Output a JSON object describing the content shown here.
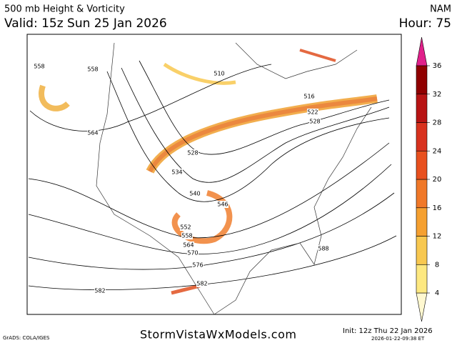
{
  "header": {
    "title": "500 mb Height & Vorticity",
    "valid": "Valid: 15z Sun 25 Jan 2026",
    "model": "NAM",
    "hour": "Hour: 75"
  },
  "colorbar": {
    "ticks": [
      4,
      8,
      12,
      16,
      20,
      24,
      28,
      32,
      36
    ]
  },
  "contour_labels": [
    558,
    558,
    510,
    516,
    522,
    528,
    564,
    528,
    534,
    540,
    546,
    552,
    558,
    564,
    570,
    576,
    588,
    582,
    582
  ],
  "footer": {
    "credit": "GrADS: COLA/IGES",
    "site": "StormVistaWxModels.com",
    "init": "Init: 12z Thu 22 Jan 2026",
    "stamp": "2026-01-22-09:38 ET"
  }
}
